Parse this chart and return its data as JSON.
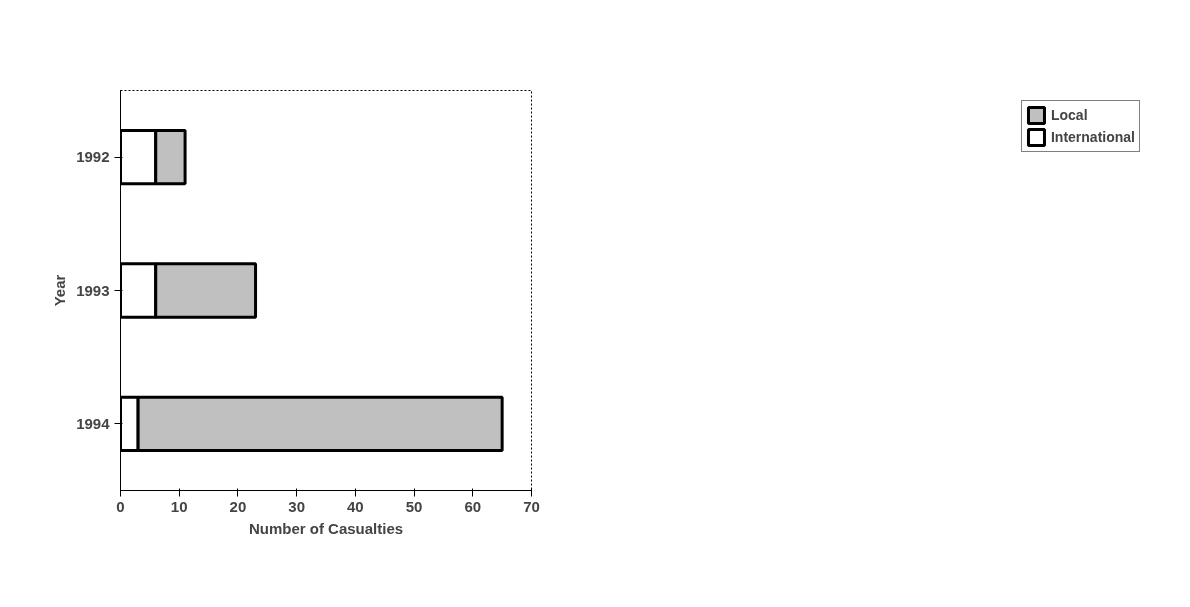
{
  "chart_data": {
    "type": "bar",
    "orientation": "horizontal",
    "stacked": true,
    "categories": [
      "1992",
      "1993",
      "1994"
    ],
    "series": [
      {
        "name": "International",
        "color": "#ffffff",
        "values": [
          6,
          6,
          3
        ]
      },
      {
        "name": "Local",
        "color": "#c0c0c0",
        "values": [
          5,
          17,
          62
        ]
      }
    ],
    "xlim": [
      0,
      70
    ],
    "xticks": [
      0,
      10,
      20,
      30,
      40,
      50,
      60,
      70
    ],
    "xlabel": "Number of Casualties",
    "ylabel": "Year",
    "legend": "right",
    "grid": false
  }
}
